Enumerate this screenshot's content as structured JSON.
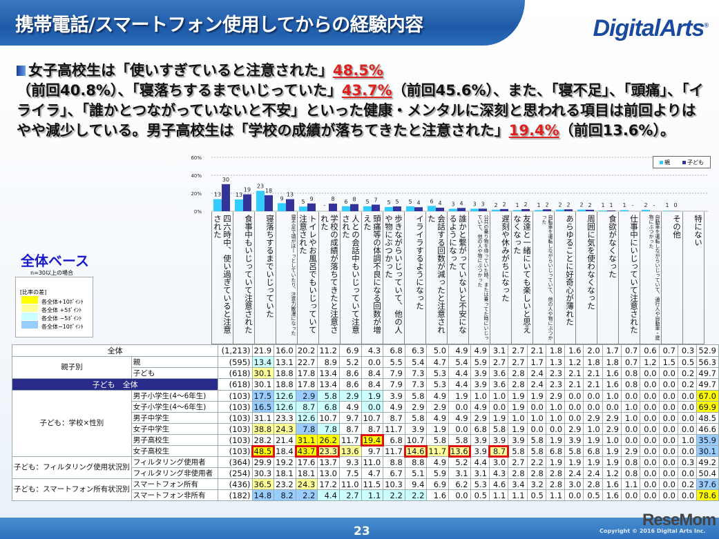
{
  "header": {
    "title": "携帯電話/スマートフォン使用してからの経験内容",
    "logo": "DigitalArts"
  },
  "summary": [
    {
      "text": "女子高校生は「使いすぎていると注意された」",
      "em": false
    },
    {
      "text": "48.5%",
      "em": true
    },
    {
      "text": "（前回40.8%）、「寝落ちするまでいじっていた」",
      "em": false
    },
    {
      "text": "43.7%",
      "em": true
    },
    {
      "text": "（前回45.6%）、また、「寝不足」、「頭痛」、「イライラ」、「誰かとつながっていないと不安」といった健康・メンタルに深刻と思われる項目は前回よりはやや減少している。男子高校生は「学校の成績が落ちてきたと注意された」",
      "em": false
    },
    {
      "text": "19.4%",
      "em": true
    },
    {
      "text": "（前回13.6%）。",
      "em": false
    }
  ],
  "base": {
    "title": "全体ベース",
    "note": "n=30以上の場合"
  },
  "diff_legend": {
    "title": "[比率の差]",
    "items": [
      {
        "label": "各全体+10ﾎﾟｲﾝﾄ",
        "color": "#ffff00"
      },
      {
        "label": "各全体 +5ﾎﾟｲﾝﾄ",
        "color": "#ffff99"
      },
      {
        "label": "各全体 −5ﾎﾟｲﾝﾄ",
        "color": "#ccffff"
      },
      {
        "label": "各全体−10ﾎﾟｲﾝﾄ",
        "color": "#99ccff"
      }
    ]
  },
  "chart_data": {
    "type": "bar",
    "yticks": [
      "0%",
      "20%",
      "40%",
      "60%"
    ],
    "ylim": [
      0,
      60
    ],
    "grid": true,
    "legend_position": "top-right",
    "categories": [
      "四六時中、使い過ぎていると注意された",
      "食事中もいじっていて注意された",
      "寝落ちするまでいじっていた",
      "寝不足で頭がぼーっとしていたり、注意力散漫になった",
      "トイレやお風呂でもいじっていて注意された",
      "学校の成績が落ちてきたと注意された",
      "人との会話中もいじっていて注意された",
      "頭痛等の体調不良になる回数が増えた",
      "歩きながらいじっていて、他の人や物にぶつかった",
      "イライラするようになった",
      "会話する回数が減ったと注意された",
      "誰かと繋がっていないと不安になるようになった",
      "公共の乗り物を待っていた時、または乗ってた時にいじっていて、他の人や物にぶつかった",
      "遅刻や休みがちになった",
      "友達と一緒にいても楽しいと思えなくなった",
      "自転車を運転しながらいじっていて、他の人や物にぶつかった",
      "あらゆることに好奇心が薄れた",
      "周囲に気を使わなくなった",
      "食欲がなくなった",
      "仕事中にいじっていて注意された",
      "自動車を運転しながらいじっていて、通行人や自動車・建物にぶつかった",
      "その他",
      "特にない"
    ],
    "series": [
      {
        "name": "親",
        "color": "#33ccff",
        "values": [
          13.4,
          13.1,
          22.7,
          8.9,
          5.2,
          0.0,
          5.5,
          5.4,
          4.7,
          5.4,
          5.9,
          2.7,
          2.7,
          1.7,
          1.3,
          1.2,
          1.8,
          1.8,
          0.7,
          1.2,
          1.5,
          0.5,
          null
        ],
        "labels": [
          "13",
          "13",
          "23",
          "9",
          "5",
          "-",
          "6",
          "5",
          "5",
          "5",
          "6",
          "3",
          "3",
          "2",
          "1",
          "1",
          "2",
          "2",
          "1",
          "1",
          "2",
          "1",
          ""
        ]
      },
      {
        "name": "子ども",
        "color": "#333399",
        "values": [
          30.1,
          18.8,
          17.8,
          13.4,
          8.6,
          8.4,
          7.9,
          7.3,
          5.3,
          4.4,
          3.9,
          3.6,
          2.8,
          2.4,
          2.3,
          2.1,
          2.1,
          1.6,
          0.8,
          0.0,
          0.0,
          0.2,
          null
        ],
        "labels": [
          "30",
          "19",
          "18",
          "13",
          "9",
          "8",
          "8",
          "7",
          "5",
          "4",
          "4",
          "4",
          "3",
          "2",
          "2",
          "2",
          "2",
          "2",
          "1",
          "-",
          "-",
          "0",
          ""
        ]
      }
    ]
  },
  "table": {
    "rows": [
      {
        "group": "",
        "label": "全体",
        "n": "(1,213)",
        "style": "total",
        "values": [
          "21.9",
          "16.0",
          "20.2",
          "11.2",
          "6.9",
          "4.3",
          "6.8",
          "6.3",
          "5.0",
          "4.9",
          "4.9",
          "3.1",
          "2.7",
          "2.1",
          "1.8",
          "1.6",
          "2.0",
          "1.7",
          "0.7",
          "0.6",
          "0.7",
          "0.3",
          "52.9"
        ]
      },
      {
        "group": "親子別",
        "label": "親",
        "n": "(595)",
        "base": 0,
        "values": [
          "13.4",
          "13.1",
          "22.7",
          "8.9",
          "5.2",
          "0.0",
          "5.5",
          "5.4",
          "4.7",
          "5.4",
          "5.9",
          "2.7",
          "2.7",
          "1.7",
          "1.3",
          "1.2",
          "1.8",
          "1.8",
          "0.7",
          "1.2",
          "1.5",
          "0.5",
          "56.3"
        ]
      },
      {
        "group": "",
        "label": "子ども",
        "n": "(618)",
        "base": 0,
        "values": [
          "30.1",
          "18.8",
          "17.8",
          "13.4",
          "8.6",
          "8.4",
          "7.9",
          "7.3",
          "5.3",
          "4.4",
          "3.9",
          "3.6",
          "2.8",
          "2.4",
          "2.3",
          "2.1",
          "2.1",
          "1.6",
          "0.8",
          "0.0",
          "0.0",
          "0.2",
          "49.7"
        ]
      },
      {
        "group": "",
        "label": "子ども　全体",
        "n": "(618)",
        "style": "navy",
        "values": [
          "30.1",
          "18.8",
          "17.8",
          "13.4",
          "8.6",
          "8.4",
          "7.9",
          "7.3",
          "5.3",
          "4.4",
          "3.9",
          "3.6",
          "2.8",
          "2.4",
          "2.3",
          "2.1",
          "2.1",
          "1.6",
          "0.8",
          "0.0",
          "0.0",
          "0.2",
          "49.7"
        ]
      },
      {
        "group": "子ども：学校×性別",
        "label": "男子小学生(4〜6年生)",
        "n": "(103)",
        "base": 3,
        "values": [
          "17.5",
          "12.6",
          "2.9",
          "5.8",
          "2.9",
          "1.9",
          "3.9",
          "5.8",
          "4.9",
          "1.9",
          "1.0",
          "1.0",
          "1.9",
          "1.9",
          "2.9",
          "0.0",
          "0.0",
          "1.0",
          "0.0",
          "0.0",
          "0.0",
          "0.0",
          "67.0"
        ]
      },
      {
        "group": "",
        "label": "女子小学生(4〜6年生)",
        "n": "(103)",
        "base": 3,
        "values": [
          "16.5",
          "12.6",
          "8.7",
          "6.8",
          "4.9",
          "0.0",
          "4.9",
          "2.9",
          "2.9",
          "0.0",
          "4.9",
          "0.0",
          "1.9",
          "0.0",
          "1.0",
          "0.0",
          "0.0",
          "0.0",
          "1.0",
          "0.0",
          "0.0",
          "0.0",
          "69.9"
        ]
      },
      {
        "group": "",
        "label": "男子中学生",
        "n": "(103)",
        "base": 3,
        "values": [
          "31.1",
          "23.3",
          "12.6",
          "10.7",
          "9.7",
          "10.7",
          "8.7",
          "5.8",
          "4.9",
          "4.9",
          "2.9",
          "1.9",
          "1.0",
          "1.0",
          "1.0",
          "0.0",
          "2.9",
          "2.9",
          "1.0",
          "0.0",
          "0.0",
          "0.0",
          "48.5"
        ]
      },
      {
        "group": "",
        "label": "女子中学生",
        "n": "(103)",
        "base": 3,
        "values": [
          "38.8",
          "24.3",
          "7.8",
          "7.8",
          "8.7",
          "8.7",
          "11.7",
          "3.9",
          "1.9",
          "0.0",
          "6.8",
          "5.8",
          "1.9",
          "0.0",
          "0.0",
          "2.9",
          "1.0",
          "2.9",
          "0.0",
          "0.0",
          "0.0",
          "0.0",
          "46.6"
        ]
      },
      {
        "group": "",
        "label": "男子高校生",
        "n": "(103)",
        "base": 3,
        "boxed": [
          5
        ],
        "values": [
          "28.2",
          "21.4",
          "31.1",
          "26.2",
          "11.7",
          "19.4",
          "6.8",
          "10.7",
          "5.8",
          "5.8",
          "3.9",
          "3.9",
          "3.9",
          "5.8",
          "1.9",
          "3.9",
          "1.9",
          "1.0",
          "0.0",
          "0.0",
          "0.0",
          "1.0",
          "35.9"
        ]
      },
      {
        "group": "",
        "label": "女子高校生",
        "n": "(103)",
        "base": 3,
        "boxed": [
          0,
          2,
          3,
          7,
          9,
          11
        ],
        "values": [
          "48.5",
          "18.4",
          "43.7",
          "23.3",
          "13.6",
          "9.7",
          "11.7",
          "14.6",
          "11.7",
          "13.6",
          "3.9",
          "8.7",
          "5.8",
          "5.8",
          "6.8",
          "5.8",
          "6.8",
          "1.9",
          "2.9",
          "0.0",
          "0.0",
          "0.0",
          "30.1"
        ]
      },
      {
        "group": "子ども：フィルタリング使用状況別",
        "label": "フィルタリング使用者",
        "n": "(364)",
        "base": 3,
        "values": [
          "29.9",
          "19.2",
          "17.6",
          "13.7",
          "9.3",
          "11.0",
          "8.8",
          "8.8",
          "4.9",
          "5.2",
          "4.4",
          "3.0",
          "2.7",
          "2.2",
          "1.9",
          "1.9",
          "1.9",
          "1.9",
          "0.8",
          "0.0",
          "0.0",
          "0.3",
          "49.2"
        ]
      },
      {
        "group": "",
        "label": "フィルタリング非使用者",
        "n": "(254)",
        "base": 3,
        "values": [
          "30.3",
          "18.1",
          "18.1",
          "13.0",
          "7.5",
          "4.7",
          "6.7",
          "5.1",
          "5.9",
          "3.1",
          "3.1",
          "4.3",
          "2.8",
          "2.8",
          "2.8",
          "2.4",
          "2.4",
          "1.2",
          "0.8",
          "0.0",
          "0.0",
          "0.0",
          "50.4"
        ]
      },
      {
        "group": "子ども：スマートフォン所有状況別",
        "label": "スマートフォン所有",
        "n": "(436)",
        "base": 3,
        "values": [
          "36.5",
          "23.2",
          "24.3",
          "17.2",
          "11.0",
          "11.5",
          "10.3",
          "9.4",
          "6.9",
          "6.2",
          "5.3",
          "4.6",
          "3.4",
          "3.2",
          "2.8",
          "3.0",
          "2.8",
          "1.6",
          "1.1",
          "0.0",
          "0.0",
          "0.2",
          "37.6"
        ]
      },
      {
        "group": "",
        "label": "スマートフォン非所有",
        "n": "(182)",
        "base": 3,
        "values": [
          "14.8",
          "8.2",
          "2.2",
          "4.4",
          "2.7",
          "1.1",
          "2.2",
          "2.2",
          "1.6",
          "0.0",
          "0.5",
          "1.1",
          "1.1",
          "0.5",
          "1.1",
          "0.0",
          "0.5",
          "1.6",
          "0.0",
          "0.0",
          "0.0",
          "0.0",
          "78.6"
        ]
      }
    ]
  },
  "footer": {
    "page": "23",
    "copyright": "Copyright © 2016 Digital Arts Inc.",
    "watermark": "ReseMom"
  }
}
